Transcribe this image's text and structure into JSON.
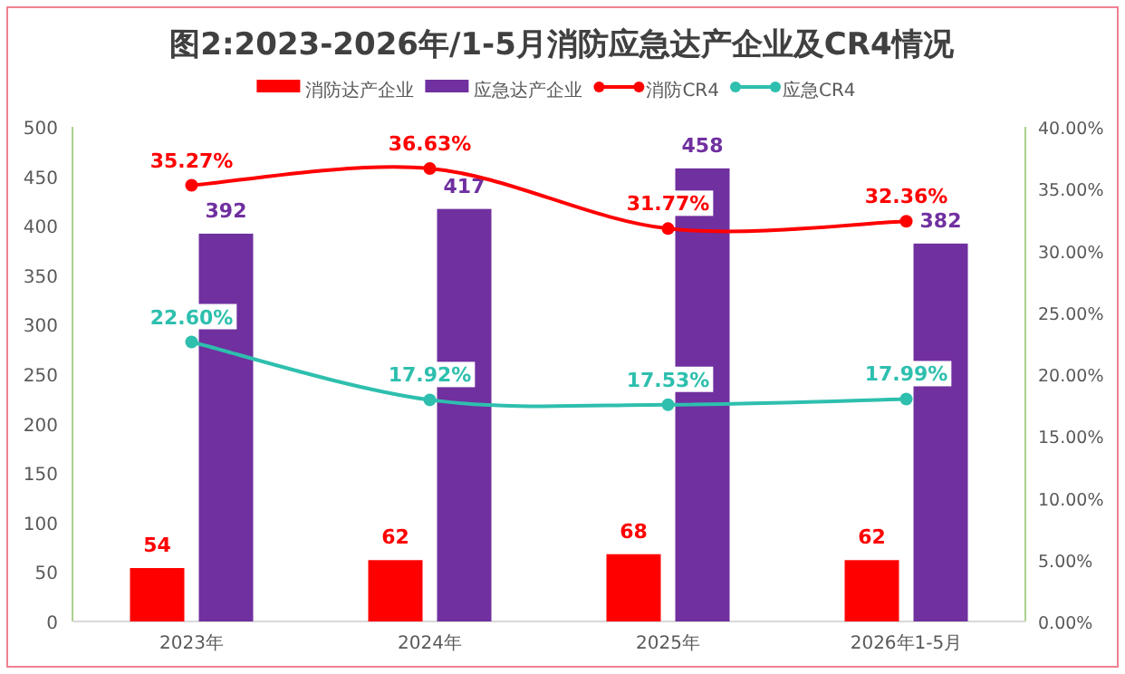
{
  "chart_data": {
    "type": "bar",
    "title": "图2:2023-2026年/1-5月消防应急达产企业及CR4情况",
    "categories": [
      "2023年",
      "2024年",
      "2025年",
      "2026年1-5月"
    ],
    "series": [
      {
        "name": "消防达产企业",
        "color": "#ff0000",
        "values": [
          54,
          62,
          68,
          62
        ],
        "value_labels": [
          "54",
          "62",
          "68",
          "62"
        ]
      },
      {
        "name": "应急达产企业",
        "color": "#7030a0",
        "values": [
          392,
          417,
          458,
          382
        ],
        "value_labels": [
          "392",
          "417",
          "458",
          "382"
        ]
      },
      {
        "name": "消防CR4",
        "type": "line",
        "axis": "y2",
        "color": "#ff0000",
        "values": [
          35.27,
          36.63,
          31.77,
          32.36
        ],
        "value_labels": [
          "35.27%",
          "36.63%",
          "31.77%",
          "32.36%"
        ]
      },
      {
        "name": "应急CR4",
        "type": "line",
        "axis": "y2",
        "color": "#2ebfae",
        "values": [
          22.6,
          17.92,
          17.53,
          17.99
        ],
        "value_labels": [
          "22.60%",
          "17.92%",
          "17.53%",
          "17.99%"
        ]
      }
    ],
    "ylim": [
      0,
      500
    ],
    "yticks": [
      0,
      50,
      100,
      150,
      200,
      250,
      300,
      350,
      400,
      450,
      500
    ],
    "y2lim": [
      0,
      40
    ],
    "y2ticks": [
      {
        "value": 0,
        "label": "0.00%"
      },
      {
        "value": 5,
        "label": "5.00%"
      },
      {
        "value": 10,
        "label": "10.00%"
      },
      {
        "value": 15,
        "label": "15.00%"
      },
      {
        "value": 20,
        "label": "20.00%"
      },
      {
        "value": 25,
        "label": "25.00%"
      },
      {
        "value": 30,
        "label": "30.00%"
      },
      {
        "value": 35,
        "label": "35.00%"
      },
      {
        "value": 40,
        "label": "40.00%"
      }
    ],
    "marker": "circle",
    "legend": "top"
  }
}
